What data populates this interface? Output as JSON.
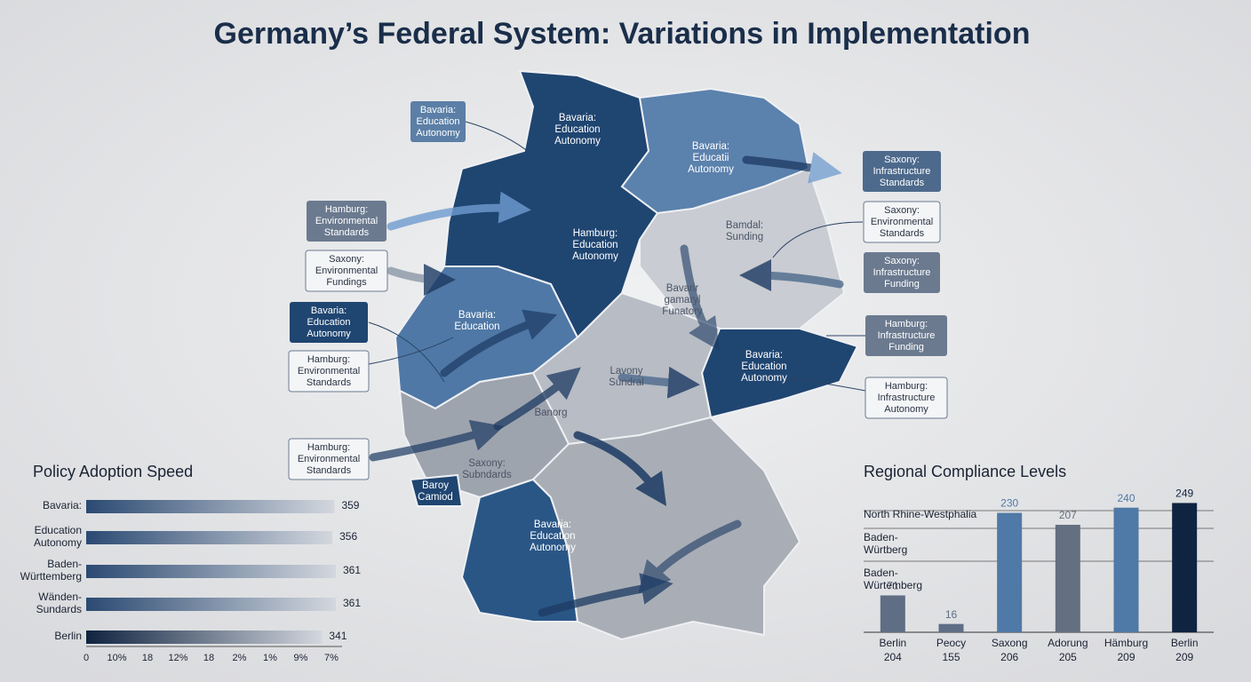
{
  "title": "Germany’s Federal System: Variations in Implementation",
  "map": {
    "region_labels": [
      {
        "lines": [
          "Bavaria:",
          "Education",
          "Autonomy"
        ]
      },
      {
        "lines": [
          "Bavaria:",
          "Educatii",
          "Autonomy"
        ]
      },
      {
        "lines": [
          "Hamburg:",
          "Education",
          "Autonomy"
        ]
      },
      {
        "lines": [
          "Bamdal:",
          "Sunding"
        ]
      },
      {
        "lines": [
          "Bavaria:",
          "Education"
        ]
      },
      {
        "lines": [
          "Bavarir",
          "gamaryl",
          "Funatory"
        ]
      },
      {
        "lines": [
          "Lavony",
          "Sundral"
        ]
      },
      {
        "lines": [
          "Bavaria:",
          "Education",
          "Autonomy"
        ]
      },
      {
        "lines": [
          "Banorg"
        ]
      },
      {
        "lines": [
          "Saxony:",
          "Subndards"
        ]
      },
      {
        "lines": [
          "Baroy",
          "Camiod"
        ]
      },
      {
        "lines": [
          "Bavaria:",
          "Education",
          "Autonomy"
        ]
      }
    ],
    "callouts": [
      {
        "lines": [
          "Bavaria:",
          "Education",
          "Autonomy"
        ],
        "color": "#5b7fa6"
      },
      {
        "lines": [
          "Hamburg:",
          "Environmental",
          "Standards"
        ],
        "color": "#6b7a8f"
      },
      {
        "lines": [
          "Saxony:",
          "Environmental",
          "Fundings"
        ],
        "color": "#f4f5f7"
      },
      {
        "lines": [
          "Bavaria:",
          "Education",
          "Autonomy"
        ],
        "color": "#1f4571"
      },
      {
        "lines": [
          "Hamburg:",
          "Environmental",
          "Standards"
        ],
        "color": "#f4f5f7"
      },
      {
        "lines": [
          "Hamburg:",
          "Environmental",
          "Standards"
        ],
        "color": "#f4f5f7"
      },
      {
        "lines": [
          "Saxony:",
          "Infrastructure",
          "Standards"
        ],
        "color": "#4d6a8c"
      },
      {
        "lines": [
          "Saxony:",
          "Environmental",
          "Standards"
        ],
        "color": "#f4f5f7"
      },
      {
        "lines": [
          "Saxony:",
          "Infrastructure",
          "Funding"
        ],
        "color": "#6b7a8f"
      },
      {
        "lines": [
          "Hamburg:",
          "Infrastructure",
          "Funding"
        ],
        "color": "#6b7a8f"
      },
      {
        "lines": [
          "Hamburg:",
          "Infrastructure",
          "Autonomy"
        ],
        "color": "#f4f5f7"
      }
    ]
  },
  "chart_data": [
    {
      "type": "hbar",
      "title": "Policy Adoption Speed",
      "categories": [
        [
          "Bavaria:"
        ],
        [
          "Education",
          "Autonomy"
        ],
        [
          "Baden-",
          "Württemberg"
        ],
        [
          "Wänden-",
          "Sundards"
        ],
        [
          "Berlin"
        ]
      ],
      "values": [
        359,
        356,
        361,
        361,
        341
      ],
      "colors": [
        "#2b4a72",
        "#2b4a72",
        "#2b4a72",
        "#2b4a72",
        "#0f2340"
      ],
      "xlim": [
        0,
        370
      ],
      "x_axis_labels": [
        "0",
        "10%",
        "18",
        "12%",
        "18",
        "2%",
        "1%",
        "9%",
        "7%"
      ]
    },
    {
      "type": "bar",
      "title": "Regional Compliance Levels",
      "categories": [
        [
          "Berlin",
          "204"
        ],
        [
          "Peocy",
          "155"
        ],
        [
          "Saxong",
          "206"
        ],
        [
          "Adorung",
          "205"
        ],
        [
          "Hämburg",
          "209"
        ],
        [
          "Berlin",
          "209"
        ]
      ],
      "values": [
        71,
        16,
        230,
        207,
        240,
        249
      ],
      "colors": [
        "#5f6e85",
        "#5f6e85",
        "#4f79a6",
        "#646f80",
        "#4f79a6",
        "#0f2440"
      ],
      "ylim": [
        0,
        260
      ],
      "row_labels": [
        [
          "North Rhine-Westphalia"
        ],
        [
          "Baden-",
          "Würtberg"
        ],
        [
          "Baden-",
          "Würtemberg"
        ]
      ]
    }
  ]
}
